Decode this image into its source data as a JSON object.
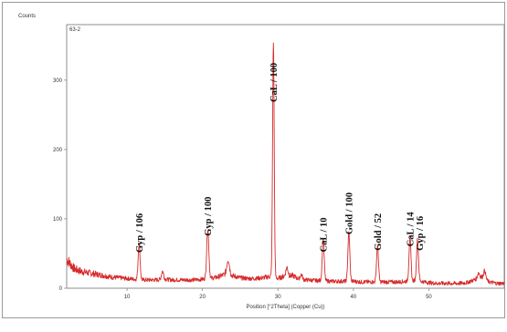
{
  "chart_data": {
    "type": "line",
    "sample_id": "63-2",
    "ylabel": "Counts",
    "xlabel": "Position [°2Theta] (Copper (Cu))",
    "xlim": [
      2,
      60
    ],
    "ylim": [
      0,
      380
    ],
    "x_ticks": [
      10,
      20,
      30,
      40,
      50
    ],
    "y_ticks": [
      0,
      100,
      200,
      300
    ],
    "grid": false,
    "series_color": "#d62a2a",
    "background_noise": [
      [
        2,
        42
      ],
      [
        3,
        28
      ],
      [
        4,
        24
      ],
      [
        5,
        22
      ],
      [
        6,
        20
      ],
      [
        7,
        18
      ],
      [
        8,
        16
      ],
      [
        9,
        15
      ],
      [
        10,
        14
      ],
      [
        11,
        13
      ],
      [
        12,
        12
      ],
      [
        13,
        12
      ],
      [
        14,
        12
      ],
      [
        15,
        13
      ],
      [
        16,
        12
      ],
      [
        17,
        12
      ],
      [
        18,
        12
      ],
      [
        19,
        12
      ],
      [
        20,
        13
      ],
      [
        21,
        14
      ],
      [
        22,
        16
      ],
      [
        23,
        20
      ],
      [
        24,
        18
      ],
      [
        25,
        15
      ],
      [
        26,
        14
      ],
      [
        27,
        14
      ],
      [
        28,
        15
      ],
      [
        29,
        17
      ],
      [
        30,
        14
      ],
      [
        31,
        18
      ],
      [
        32,
        18
      ],
      [
        33,
        12
      ],
      [
        34,
        12
      ],
      [
        35,
        11
      ],
      [
        36,
        11
      ],
      [
        37,
        10
      ],
      [
        38,
        10
      ],
      [
        39,
        10
      ],
      [
        40,
        10
      ],
      [
        41,
        9
      ],
      [
        42,
        9
      ],
      [
        43,
        9
      ],
      [
        44,
        9
      ],
      [
        45,
        9
      ],
      [
        46,
        9
      ],
      [
        47,
        10
      ],
      [
        48,
        11
      ],
      [
        49,
        10
      ],
      [
        50,
        8
      ],
      [
        51,
        7
      ],
      [
        52,
        7
      ],
      [
        53,
        7
      ],
      [
        54,
        7
      ],
      [
        55,
        8
      ],
      [
        56,
        12
      ],
      [
        57,
        16
      ],
      [
        58,
        9
      ],
      [
        59,
        7
      ],
      [
        60,
        7
      ]
    ],
    "peaks": [
      {
        "x": 11.6,
        "y": 52,
        "w": 0.18
      },
      {
        "x": 14.7,
        "y": 12,
        "w": 0.2
      },
      {
        "x": 20.7,
        "y": 72,
        "w": 0.2
      },
      {
        "x": 23.4,
        "y": 22,
        "w": 0.25
      },
      {
        "x": 29.4,
        "y": 340,
        "w": 0.15
      },
      {
        "x": 31.2,
        "y": 12,
        "w": 0.2
      },
      {
        "x": 33.1,
        "y": 8,
        "w": 0.2
      },
      {
        "x": 36.0,
        "y": 60,
        "w": 0.18
      },
      {
        "x": 39.4,
        "y": 70,
        "w": 0.18
      },
      {
        "x": 43.2,
        "y": 52,
        "w": 0.18
      },
      {
        "x": 47.5,
        "y": 62,
        "w": 0.18
      },
      {
        "x": 48.5,
        "y": 60,
        "w": 0.18
      },
      {
        "x": 56.6,
        "y": 8,
        "w": 0.2
      },
      {
        "x": 57.4,
        "y": 12,
        "w": 0.2
      }
    ],
    "annotations": [
      {
        "text": "Gyp / 106",
        "x": 11.6,
        "y_top": 108
      },
      {
        "text": "Gyp / 100",
        "x": 20.7,
        "y_top": 132
      },
      {
        "text": "CaL / 100",
        "x": 29.4,
        "y_top": 325
      },
      {
        "text": "CaL / 10",
        "x": 36.0,
        "y_top": 102
      },
      {
        "text": "Gold / 100",
        "x": 39.4,
        "y_top": 138
      },
      {
        "text": "Gold / 52",
        "x": 43.2,
        "y_top": 108
      },
      {
        "text": "CaL / 14",
        "x": 47.5,
        "y_top": 110
      },
      {
        "text": "Gyp / 16",
        "x": 48.8,
        "y_top": 104
      }
    ]
  }
}
